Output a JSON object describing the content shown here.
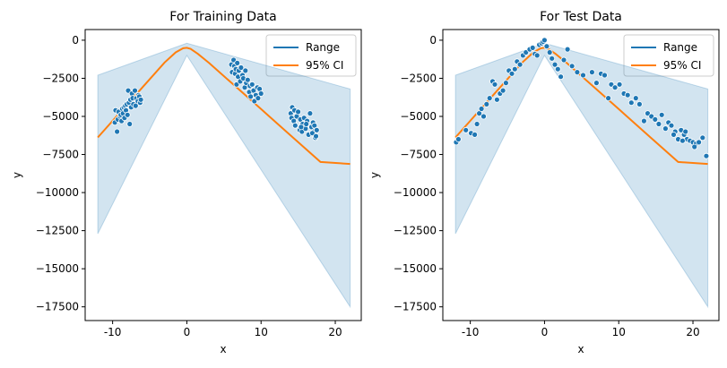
{
  "chart_data": [
    {
      "type": "scatter",
      "title": "For Training Data",
      "xlabel": "x",
      "ylabel": "y",
      "xlim": [
        -13.7,
        23.5
      ],
      "ylim": [
        -18400,
        700
      ],
      "xticks": [
        -10,
        0,
        10,
        20
      ],
      "yticks": [
        0,
        -2500,
        -5000,
        -7500,
        -10000,
        -12500,
        -15000,
        -17500
      ],
      "legend": {
        "position": "top-right",
        "entries": [
          {
            "label": "Range",
            "color": "#1f77b4"
          },
          {
            "label": "95% CI",
            "color": "#ff7f0e"
          }
        ]
      },
      "band": {
        "x": [
          -12,
          0,
          22
        ],
        "upper": [
          -2300,
          -200,
          -3200
        ],
        "lower": [
          -12700,
          -1000,
          -17500
        ],
        "color": "#1f77b4",
        "opacity": 0.2
      },
      "line": {
        "x": [
          -12,
          -9,
          -6,
          -3,
          -1.5,
          -0.5,
          0,
          0.5,
          1.5,
          3,
          6,
          10,
          14,
          18,
          22
        ],
        "y": [
          -6380,
          -4740,
          -3100,
          -1460,
          -800,
          -530,
          -500,
          -570,
          -900,
          -1500,
          -2790,
          -4520,
          -6260,
          -7990,
          -8120
        ],
        "color": "#ff7f0e"
      },
      "points": {
        "color": "#1f77b4",
        "x": [
          -9.7,
          -9.6,
          -9.4,
          -9.3,
          -9.2,
          -9.0,
          -8.9,
          -8.8,
          -8.7,
          -8.6,
          -8.5,
          -8.4,
          -8.3,
          -8.2,
          -8.1,
          -8.0,
          -7.9,
          -7.8,
          -7.7,
          -7.6,
          -7.5,
          -7.4,
          -7.3,
          -7.2,
          -7.0,
          -6.9,
          -6.8,
          -6.6,
          -6.5,
          -6.4,
          -6.3,
          -6.2,
          6.0,
          6.1,
          6.3,
          6.4,
          6.5,
          6.6,
          6.7,
          6.8,
          6.9,
          7.0,
          7.2,
          7.3,
          7.5,
          7.6,
          7.8,
          7.9,
          8.0,
          8.2,
          8.4,
          8.5,
          8.6,
          8.8,
          9.0,
          9.1,
          9.3,
          9.5,
          9.6,
          9.8,
          10.0,
          14.0,
          14.1,
          14.2,
          14.4,
          14.5,
          14.6,
          14.8,
          15.0,
          15.2,
          15.3,
          15.5,
          15.6,
          15.8,
          16.0,
          16.2,
          16.4,
          16.6,
          16.8,
          17.0,
          17.1,
          17.2,
          17.3,
          17.5,
          16.1,
          15.4,
          16.9,
          17.4
        ],
        "y": [
          -5400,
          -4600,
          -6000,
          -5200,
          -4700,
          -5000,
          -4900,
          -5300,
          -4500,
          -4800,
          -4400,
          -5100,
          -4300,
          -4600,
          -4200,
          -4900,
          -3300,
          -4100,
          -5500,
          -3900,
          -4400,
          -3500,
          -3800,
          -4200,
          -3300,
          -4300,
          -3800,
          -4000,
          -3600,
          -3700,
          -4100,
          -3900,
          -1600,
          -2100,
          -1300,
          -1700,
          -2200,
          -1900,
          -2900,
          -1500,
          -2400,
          -2000,
          -2700,
          -1800,
          -2300,
          -2500,
          -3100,
          -2000,
          -2800,
          -2600,
          -3400,
          -3000,
          -3700,
          -2900,
          -3300,
          -4000,
          -3600,
          -3100,
          -3800,
          -3200,
          -3500,
          -4800,
          -5100,
          -4400,
          -5300,
          -4600,
          -5600,
          -5000,
          -4700,
          -5900,
          -5200,
          -6000,
          -5500,
          -5100,
          -5800,
          -5300,
          -6200,
          -4800,
          -5700,
          -5400,
          -6000,
          -5600,
          -6400,
          -5900,
          -5500,
          -5700,
          -6100,
          -6300
        ]
      }
    },
    {
      "type": "scatter",
      "title": "For Test Data",
      "xlabel": "x",
      "ylabel": "y",
      "xlim": [
        -13.7,
        23.5
      ],
      "ylim": [
        -18400,
        700
      ],
      "xticks": [
        -10,
        0,
        10,
        20
      ],
      "yticks": [
        0,
        -2500,
        -5000,
        -7500,
        -10000,
        -12500,
        -15000,
        -17500
      ],
      "legend": {
        "position": "top-right",
        "entries": [
          {
            "label": "Range",
            "color": "#1f77b4"
          },
          {
            "label": "95% CI",
            "color": "#ff7f0e"
          }
        ]
      },
      "band": {
        "x": [
          -12,
          0,
          22
        ],
        "upper": [
          -2300,
          -200,
          -3200
        ],
        "lower": [
          -12700,
          -1000,
          -17500
        ],
        "color": "#1f77b4",
        "opacity": 0.2
      },
      "line": {
        "x": [
          -12,
          -9,
          -6,
          -3,
          -1.5,
          -0.5,
          0,
          0.5,
          1.5,
          3,
          6,
          10,
          14,
          18,
          22
        ],
        "y": [
          -6380,
          -4740,
          -3100,
          -1460,
          -800,
          -530,
          -500,
          -570,
          -900,
          -1500,
          -2790,
          -4520,
          -6260,
          -7990,
          -8120
        ],
        "color": "#ff7f0e"
      },
      "points": {
        "color": "#1f77b4",
        "x": [
          -11.9,
          -11.6,
          -10.6,
          -9.9,
          -9.4,
          -9.1,
          -8.8,
          -8.5,
          -8.2,
          -7.8,
          -7.4,
          -7.0,
          -6.7,
          -6.4,
          -6.0,
          -5.6,
          -5.2,
          -4.8,
          -4.4,
          -4.0,
          -3.7,
          -3.3,
          -2.9,
          -2.5,
          -2.0,
          -1.6,
          -1.3,
          -1.0,
          -0.7,
          -0.4,
          -0.2,
          0.0,
          0.3,
          0.7,
          1.0,
          1.4,
          1.8,
          2.2,
          2.6,
          3.1,
          3.7,
          4.4,
          5.2,
          6.4,
          7.0,
          7.6,
          8.1,
          8.6,
          9.0,
          9.5,
          10.1,
          10.7,
          11.2,
          11.7,
          12.3,
          12.8,
          13.4,
          13.9,
          14.4,
          14.9,
          15.4,
          15.8,
          16.3,
          16.7,
          17.1,
          17.6,
          18.0,
          18.4,
          18.8,
          19.2,
          19.6,
          20.0,
          20.4,
          20.8,
          21.3,
          21.8,
          19.0,
          17.4,
          18.6,
          20.2
        ],
        "y": [
          -6700,
          -6500,
          -5900,
          -6100,
          -6200,
          -5500,
          -4800,
          -4500,
          -5000,
          -4200,
          -3800,
          -2700,
          -2900,
          -3900,
          -3500,
          -3300,
          -2800,
          -2000,
          -2200,
          -1900,
          -1400,
          -1600,
          -1000,
          -800,
          -600,
          -500,
          -900,
          -1000,
          -300,
          -200,
          -100,
          0,
          -400,
          -800,
          -1200,
          -1600,
          -1900,
          -2400,
          -1300,
          -600,
          -1700,
          -2100,
          -2300,
          -2100,
          -2800,
          -2200,
          -2300,
          -3800,
          -2900,
          -3100,
          -2900,
          -3500,
          -3600,
          -4100,
          -3800,
          -4200,
          -5300,
          -4800,
          -5000,
          -5200,
          -5500,
          -4900,
          -5800,
          -5400,
          -5600,
          -6000,
          -6500,
          -5900,
          -6200,
          -6500,
          -6600,
          -6700,
          -6800,
          -6700,
          -6400,
          -7600,
          -6000,
          -6200,
          -6600,
          -7000
        ]
      }
    }
  ]
}
